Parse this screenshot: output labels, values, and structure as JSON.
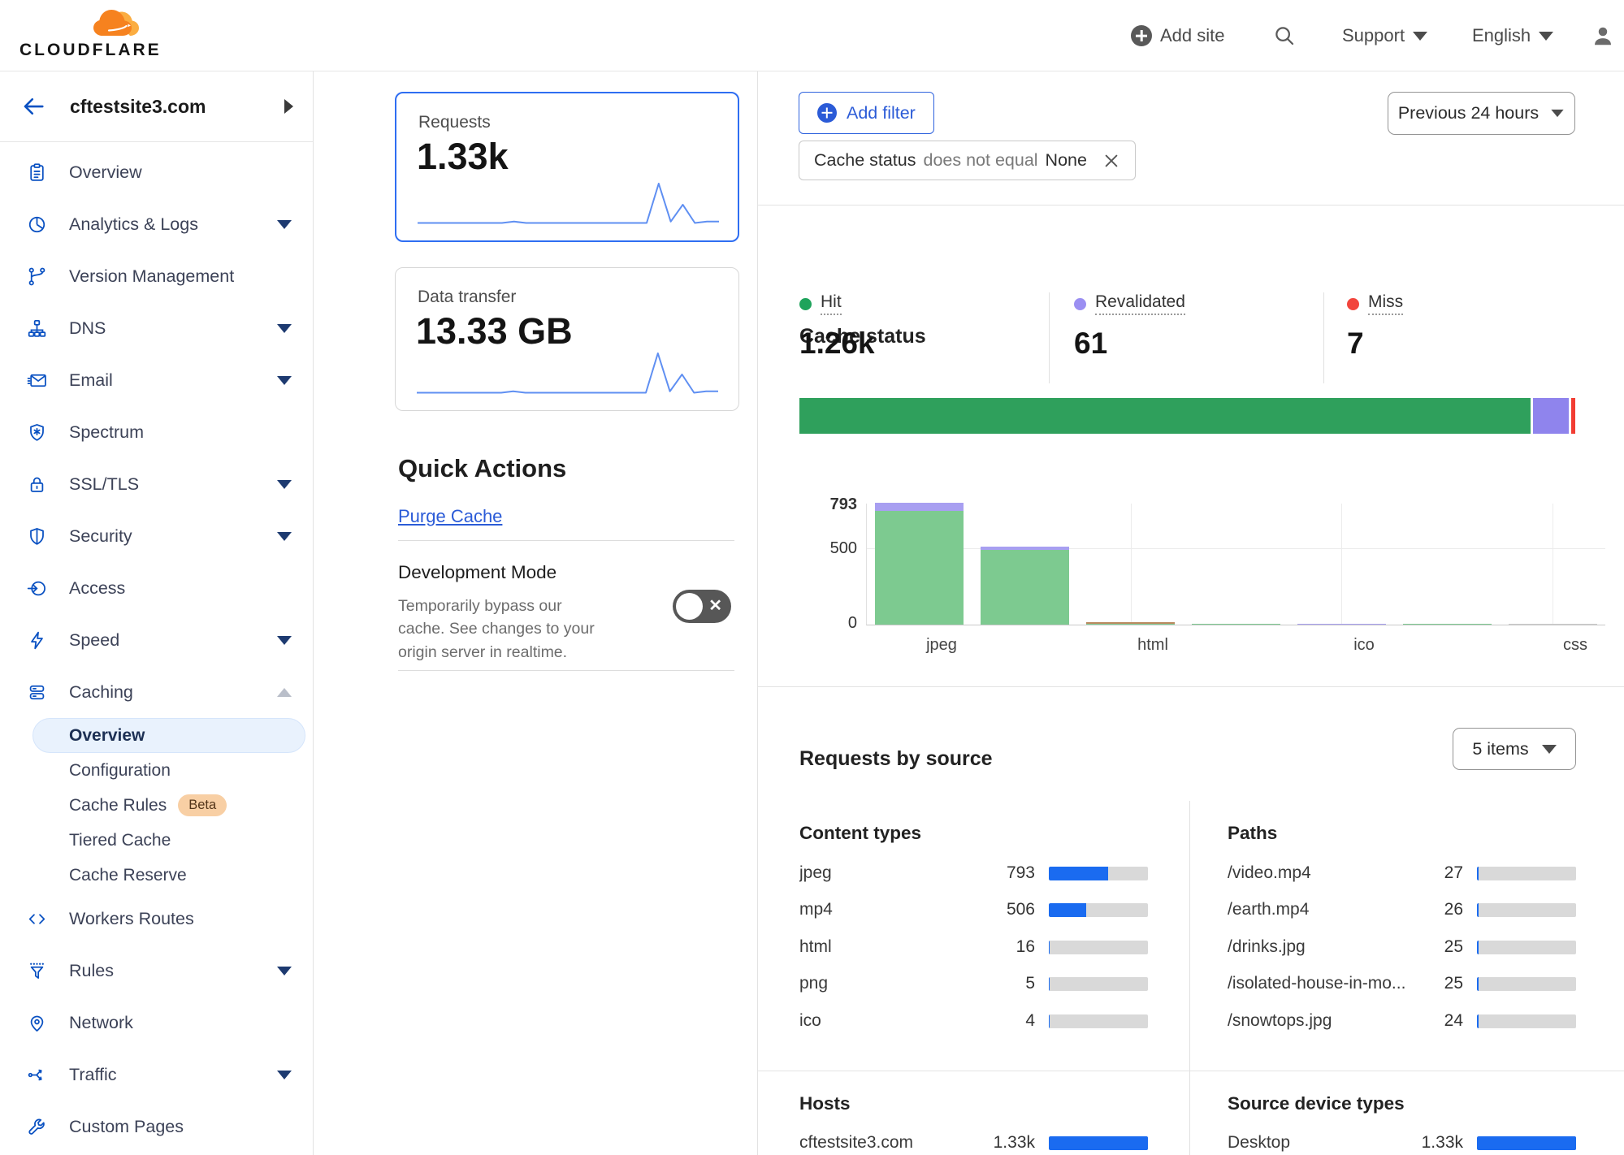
{
  "header": {
    "brand": "CLOUDFLARE",
    "add_site_label": "Add site",
    "support_label": "Support",
    "language_label": "English"
  },
  "sidebar": {
    "site_name": "cftestsite3.com",
    "items": [
      {
        "label": "Overview"
      },
      {
        "label": "Analytics & Logs"
      },
      {
        "label": "Version Management"
      },
      {
        "label": "DNS"
      },
      {
        "label": "Email"
      },
      {
        "label": "Spectrum"
      },
      {
        "label": "SSL/TLS"
      },
      {
        "label": "Security"
      },
      {
        "label": "Access"
      },
      {
        "label": "Speed"
      },
      {
        "label": "Caching"
      }
    ],
    "caching_sub": [
      {
        "label": "Overview",
        "active": true
      },
      {
        "label": "Configuration"
      },
      {
        "label": "Cache Rules",
        "badge": "Beta"
      },
      {
        "label": "Tiered Cache"
      },
      {
        "label": "Cache Reserve"
      }
    ],
    "items_lower": [
      {
        "label": "Workers Routes"
      },
      {
        "label": "Rules"
      },
      {
        "label": "Network"
      },
      {
        "label": "Traffic"
      },
      {
        "label": "Custom Pages"
      }
    ]
  },
  "cards": {
    "requests": {
      "label": "Requests",
      "value": "1.33k"
    },
    "data_transfer": {
      "label": "Data transfer",
      "value": "13.33 GB"
    }
  },
  "quick_actions": {
    "title": "Quick Actions",
    "purge_label": "Purge Cache",
    "dev_mode_title": "Development Mode",
    "dev_mode_desc": "Temporarily bypass our cache. See changes to your origin server in realtime."
  },
  "filters": {
    "add_filter_label": "Add filter",
    "chip": {
      "field": "Cache status",
      "op": "does not equal",
      "value": "None"
    },
    "time_range_label": "Previous 24 hours"
  },
  "cache_status": {
    "title": "Cache status",
    "stats": [
      {
        "label": "Hit",
        "value": "1.26k",
        "num": 1260,
        "color": "#1ea35b"
      },
      {
        "label": "Revalidated",
        "value": "61",
        "num": 61,
        "color": "#9b8ff2"
      },
      {
        "label": "Miss",
        "value": "7",
        "num": 7,
        "color": "#f2453c"
      }
    ]
  },
  "chart_data": [
    {
      "name": "requests_sparkline",
      "type": "line",
      "title": "Requests over previous 24 hours (unlabeled sparkline)",
      "values": [
        2,
        2,
        2,
        2,
        2,
        2,
        2,
        2,
        3,
        2,
        2,
        2,
        2,
        2,
        2,
        2,
        2,
        2,
        2,
        2,
        30,
        3,
        15,
        2,
        3,
        3
      ]
    },
    {
      "name": "cache_status_totals",
      "type": "bar-stacked-horizontal",
      "segments": [
        {
          "label": "Hit",
          "value": 1260,
          "color": "#2fa05c"
        },
        {
          "label": "Revalidated",
          "value": 61,
          "color": "#8f84ed"
        },
        {
          "label": "Miss",
          "value": 7,
          "color": "#f23d33"
        }
      ]
    },
    {
      "name": "cache_status_by_content_type",
      "type": "bar",
      "ylim": [
        0,
        793
      ],
      "ytick_labels": [
        "793",
        "500",
        "0"
      ],
      "x_visible": [
        "jpeg",
        "html",
        "ico",
        "css"
      ],
      "grid": true,
      "bars": [
        {
          "category": "jpeg",
          "stack": [
            {
              "value": 738,
              "color": "green"
            },
            {
              "value": 55,
              "color": "purple"
            }
          ]
        },
        {
          "category": "",
          "stack": [
            {
              "value": 486,
              "color": "green"
            },
            {
              "value": 20,
              "color": "purple"
            }
          ]
        },
        {
          "category": "html",
          "stack": [
            {
              "value": 8,
              "color": "green"
            },
            {
              "value": 8,
              "color": "brown"
            }
          ]
        },
        {
          "category": "",
          "stack": [
            {
              "value": 5,
              "color": "green"
            }
          ]
        },
        {
          "category": "ico",
          "stack": [
            {
              "value": 4,
              "color": "purple"
            }
          ]
        },
        {
          "category": "",
          "stack": [
            {
              "value": 2,
              "color": "green"
            }
          ]
        },
        {
          "category": "css",
          "stack": [
            {
              "value": 1,
              "color": "gray"
            }
          ]
        }
      ],
      "palette": {
        "green": "#7dca90",
        "purple": "#a89ff1",
        "brown": "#bb8a60",
        "gray": "#c9c9c9"
      }
    }
  ],
  "requests_by_source": {
    "title": "Requests by source",
    "items_dropdown": "5 items",
    "total_num": 1330,
    "content_types": {
      "title": "Content types",
      "rows": [
        {
          "label": "jpeg",
          "value": "793",
          "num": 793
        },
        {
          "label": "mp4",
          "value": "506",
          "num": 506
        },
        {
          "label": "html",
          "value": "16",
          "num": 16
        },
        {
          "label": "png",
          "value": "5",
          "num": 5
        },
        {
          "label": "ico",
          "value": "4",
          "num": 4
        }
      ]
    },
    "paths": {
      "title": "Paths",
      "rows": [
        {
          "label": "/video.mp4",
          "value": "27",
          "num": 27
        },
        {
          "label": "/earth.mp4",
          "value": "26",
          "num": 26
        },
        {
          "label": "/drinks.jpg",
          "value": "25",
          "num": 25
        },
        {
          "label": "/isolated-house-in-mo...",
          "value": "25",
          "num": 25
        },
        {
          "label": "/snowtops.jpg",
          "value": "24",
          "num": 24
        }
      ]
    },
    "hosts": {
      "title": "Hosts",
      "rows": [
        {
          "label": "cftestsite3.com",
          "value": "1.33k",
          "num": 1330
        }
      ]
    },
    "devices": {
      "title": "Source device types",
      "rows": [
        {
          "label": "Desktop",
          "value": "1.33k",
          "num": 1330
        }
      ]
    }
  }
}
